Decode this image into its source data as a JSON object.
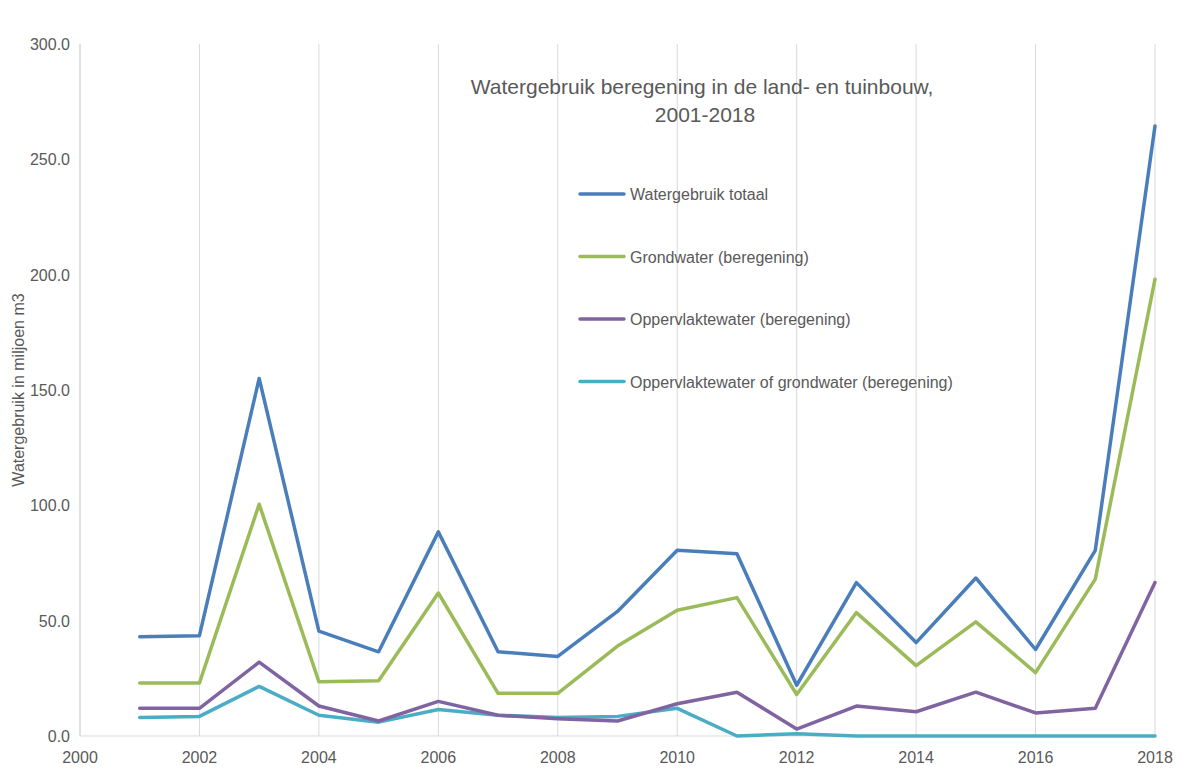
{
  "chart_data": {
    "type": "line",
    "title": "Watergebruik beregening in de land- en tuinbouw, 2001-2018",
    "y_label": "Watergebruik in miljoen m3",
    "x": [
      2001,
      2002,
      2003,
      2004,
      2005,
      2006,
      2007,
      2008,
      2009,
      2010,
      2011,
      2012,
      2013,
      2014,
      2015,
      2016,
      2017,
      2018
    ],
    "series": [
      {
        "name": "Watergebruik totaal",
        "color": "#4a7ebb",
        "values": [
          43,
          43.5,
          155,
          45.5,
          36.5,
          88.5,
          36.5,
          34.5,
          54,
          80.5,
          79,
          22,
          66.5,
          40.5,
          68.5,
          37.5,
          80.5,
          264.5
        ]
      },
      {
        "name": "Grondwater (beregening)",
        "color": "#9bbb59",
        "values": [
          23,
          23,
          100.5,
          23.5,
          24,
          62,
          18.5,
          18.5,
          39,
          54.5,
          60,
          18,
          53.5,
          30.5,
          49.5,
          27.5,
          68,
          198
        ]
      },
      {
        "name": "Oppervlaktewater (beregening)",
        "color": "#8064a2",
        "values": [
          12,
          12,
          32,
          13,
          6.5,
          15,
          9,
          7.5,
          6.5,
          14,
          19,
          3,
          13,
          10.5,
          19,
          10,
          12,
          66.5
        ]
      },
      {
        "name": "Oppervlaktewater of grondwater (beregening)",
        "color": "#4bacc6",
        "values": [
          8,
          8.5,
          21.5,
          9,
          6,
          11.5,
          9,
          8,
          8.5,
          12,
          0,
          1,
          0,
          0,
          0,
          0,
          0,
          0
        ]
      }
    ],
    "xlim": [
      2000,
      2018
    ],
    "xticks": [
      2000,
      2002,
      2004,
      2006,
      2008,
      2010,
      2012,
      2014,
      2016,
      2018
    ],
    "ylim": [
      0,
      300
    ],
    "yticks": [
      {
        "value": 0,
        "label": "0.0"
      },
      {
        "value": 50,
        "label": "50.0"
      },
      {
        "value": 100,
        "label": "100.0"
      },
      {
        "value": 150,
        "label": "150.0"
      },
      {
        "value": 200,
        "label": "200.0"
      },
      {
        "value": 250,
        "label": "250.0"
      },
      {
        "value": 300,
        "label": "300.0"
      }
    ],
    "grid": "x",
    "legend": "top-right"
  }
}
